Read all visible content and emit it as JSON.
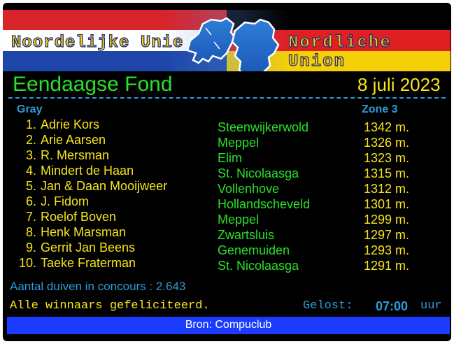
{
  "banner": {
    "left_title": "Noordelijke Unie",
    "right_title": "Nordliche Union",
    "colors": {
      "nl_red": "#d8232a",
      "nl_white": "#ffffff",
      "nl_blue": "#1d46a8",
      "de_black": "#000000",
      "de_red": "#e01f22",
      "de_gold": "#f5cf07"
    }
  },
  "event": {
    "title": "Eendaagse Fond",
    "date": "8 juli 2023"
  },
  "sections": {
    "left_header": "Gray",
    "right_header": "Zone 3"
  },
  "results": [
    {
      "rank": "1.",
      "name": "Adrie Kors",
      "place": "Steenwijkerwold",
      "speed": "1342 m."
    },
    {
      "rank": "2.",
      "name": "Arie Aarsen",
      "place": "Meppel",
      "speed": "1326 m."
    },
    {
      "rank": "3.",
      "name": "R. Mersman",
      "place": "Elim",
      "speed": "1323 m."
    },
    {
      "rank": "4.",
      "name": "Mindert de Haan",
      "place": "St. Nicolaasga",
      "speed": "1315 m."
    },
    {
      "rank": "5.",
      "name": "Jan & Daan Mooijweer",
      "place": "Vollenhove",
      "speed": "1312 m."
    },
    {
      "rank": "6.",
      "name": "J. Fidom",
      "place": "Hollandscheveld",
      "speed": "1301 m."
    },
    {
      "rank": "7.",
      "name": "Roelof Boven",
      "place": "Meppel",
      "speed": "1299 m."
    },
    {
      "rank": "8.",
      "name": "Henk Marsman",
      "place": "Zwartsluis",
      "speed": "1297 m."
    },
    {
      "rank": "9.",
      "name": "Gerrit Jan Beens",
      "place": "Genemuiden",
      "speed": "1293 m."
    },
    {
      "rank": "10.",
      "name": "Taeke Fraterman",
      "place": "St. Nicolaasga",
      "speed": "1291 m."
    }
  ],
  "footer": {
    "pigeon_count_label": "Aantal duiven in concours : 2.643",
    "congrats": "Alle winnaars gefeliciteerd.",
    "released_label": "Gelost:",
    "released_time": "07:00",
    "released_unit": "uur",
    "source": "Bron: Compuclub"
  },
  "colors": {
    "green": "#29e02a",
    "yellow": "#f6e51b",
    "blue_text": "#2e9bd6",
    "source_bar": "#1b3cff"
  }
}
